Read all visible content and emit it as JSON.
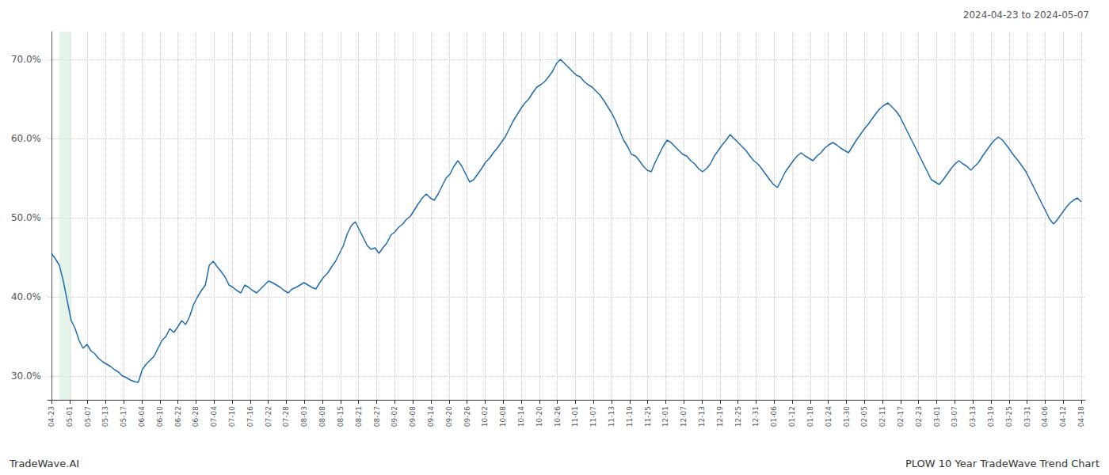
{
  "chart_data": {
    "type": "line",
    "title": "2024-04-23 to 2024-05-07",
    "annotations": [
      "TradeWave.AI",
      "PLOW 10 Year TradeWave Trend Chart"
    ],
    "color": "#1f6cb0",
    "grid": true,
    "line_style": "solid",
    "highlight": {
      "x": [
        2,
        5
      ],
      "color": "#d4edda"
    },
    "xlim": [
      -1,
      262
    ],
    "xticks": [
      {
        "value": 0,
        "label": "04-23"
      },
      {
        "value": 4.5789473684,
        "label": "05-01"
      },
      {
        "value": 9.1578947368,
        "label": "05-07"
      },
      {
        "value": 13.7368421053,
        "label": "05-13"
      },
      {
        "value": 18.3157894737,
        "label": "05-17"
      },
      {
        "value": 22.8947368421,
        "label": "06-04"
      },
      {
        "value": 27.4736842105,
        "label": "06-10"
      },
      {
        "value": 32.0526315789,
        "label": "06-22"
      },
      {
        "value": 36.6315789474,
        "label": "06-28"
      },
      {
        "value": 41.2105263158,
        "label": "07-04"
      },
      {
        "value": 45.7894736842,
        "label": "07-10"
      },
      {
        "value": 50.3684210526,
        "label": "07-16"
      },
      {
        "value": 54.9473684211,
        "label": "07-22"
      },
      {
        "value": 59.5263157895,
        "label": "07-28"
      },
      {
        "value": 64.1052631579,
        "label": "08-03"
      },
      {
        "value": 68.6842105263,
        "label": "08-08"
      },
      {
        "value": 73.2631578947,
        "label": "08-15"
      },
      {
        "value": 77.8421052632,
        "label": "08-21"
      },
      {
        "value": 82.4210526316,
        "label": "08-27"
      },
      {
        "value": 87,
        "label": "09-02"
      },
      {
        "value": 91.5789473684,
        "label": "09-08"
      },
      {
        "value": 96.1578947368,
        "label": "09-14"
      },
      {
        "value": 100.7368421053,
        "label": "09-20"
      },
      {
        "value": 105.3157894737,
        "label": "09-26"
      },
      {
        "value": 109.8947368421,
        "label": "10-02"
      },
      {
        "value": 114.4736842105,
        "label": "10-08"
      },
      {
        "value": 119.0526315789,
        "label": "10-14"
      },
      {
        "value": 123.6315789474,
        "label": "10-20"
      },
      {
        "value": 128.2105263158,
        "label": "10-26"
      },
      {
        "value": 132.7894736842,
        "label": "11-01"
      },
      {
        "value": 137.3684210526,
        "label": "11-07"
      },
      {
        "value": 141.9473684211,
        "label": "11-13"
      },
      {
        "value": 146.5263157895,
        "label": "11-19"
      },
      {
        "value": 151.1052631579,
        "label": "11-25"
      },
      {
        "value": 155.6842105263,
        "label": "12-01"
      },
      {
        "value": 160.2631578947,
        "label": "12-07"
      },
      {
        "value": 164.8421052632,
        "label": "12-13"
      },
      {
        "value": 169.4210526316,
        "label": "12-19"
      },
      {
        "value": 174,
        "label": "12-25"
      },
      {
        "value": 178.5789473684,
        "label": "12-31"
      },
      {
        "value": 183.1578947368,
        "label": "01-06"
      },
      {
        "value": 187.7368421053,
        "label": "01-12"
      },
      {
        "value": 192.3157894737,
        "label": "01-18"
      },
      {
        "value": 196.8947368421,
        "label": "01-24"
      },
      {
        "value": 201.4736842105,
        "label": "01-30"
      },
      {
        "value": 206.0526315789,
        "label": "02-05"
      },
      {
        "value": 210.6315789474,
        "label": "02-11"
      },
      {
        "value": 215.2105263158,
        "label": "02-17"
      },
      {
        "value": 219.7894736842,
        "label": "02-23"
      },
      {
        "value": 224.3684210526,
        "label": "03-01"
      },
      {
        "value": 228.9473684211,
        "label": "03-07"
      },
      {
        "value": 233.5263157895,
        "label": "03-13"
      },
      {
        "value": 238.1052631579,
        "label": "03-19"
      },
      {
        "value": 242.6842105263,
        "label": "03-25"
      },
      {
        "value": 247.2631578947,
        "label": "03-31"
      },
      {
        "value": 251.8421052632,
        "label": "04-06"
      },
      {
        "value": 256.4210526316,
        "label": "04-12"
      },
      {
        "value": 261,
        "label": "04-18"
      }
    ],
    "ylim": [
      0.27,
      0.735
    ],
    "yticks": [
      {
        "value": 0.3,
        "label": "30.0%"
      },
      {
        "value": 0.4,
        "label": "40.0%"
      },
      {
        "value": 0.5,
        "label": "50.0%"
      },
      {
        "value": 0.6,
        "label": "60.0%"
      },
      {
        "value": 0.7,
        "label": "70.0%"
      }
    ],
    "values": [
      0.455,
      0.448,
      0.44,
      0.42,
      0.395,
      0.37,
      0.36,
      0.345,
      0.335,
      0.34,
      0.332,
      0.328,
      0.322,
      0.318,
      0.315,
      0.312,
      0.308,
      0.305,
      0.3,
      0.298,
      0.295,
      0.293,
      0.292,
      0.308,
      0.315,
      0.32,
      0.325,
      0.335,
      0.345,
      0.35,
      0.36,
      0.355,
      0.362,
      0.37,
      0.365,
      0.375,
      0.39,
      0.4,
      0.408,
      0.415,
      0.44,
      0.445,
      0.438,
      0.432,
      0.425,
      0.415,
      0.412,
      0.408,
      0.405,
      0.415,
      0.412,
      0.408,
      0.405,
      0.41,
      0.415,
      0.42,
      0.418,
      0.415,
      0.412,
      0.408,
      0.405,
      0.41,
      0.412,
      0.415,
      0.418,
      0.415,
      0.412,
      0.41,
      0.418,
      0.425,
      0.43,
      0.438,
      0.445,
      0.455,
      0.465,
      0.48,
      0.49,
      0.495,
      0.485,
      0.475,
      0.465,
      0.46,
      0.462,
      0.455,
      0.462,
      0.468,
      0.478,
      0.482,
      0.488,
      0.492,
      0.498,
      0.502,
      0.51,
      0.518,
      0.525,
      0.53,
      0.525,
      0.522,
      0.53,
      0.54,
      0.55,
      0.555,
      0.565,
      0.572,
      0.565,
      0.555,
      0.545,
      0.548,
      0.555,
      0.562,
      0.57,
      0.575,
      0.582,
      0.588,
      0.595,
      0.602,
      0.612,
      0.622,
      0.63,
      0.638,
      0.645,
      0.65,
      0.658,
      0.665,
      0.668,
      0.672,
      0.678,
      0.685,
      0.695,
      0.7,
      0.695,
      0.69,
      0.685,
      0.68,
      0.678,
      0.672,
      0.668,
      0.665,
      0.66,
      0.655,
      0.648,
      0.64,
      0.632,
      0.622,
      0.61,
      0.598,
      0.59,
      0.58,
      0.578,
      0.572,
      0.565,
      0.56,
      0.558,
      0.57,
      0.58,
      0.59,
      0.598,
      0.595,
      0.59,
      0.585,
      0.58,
      0.578,
      0.572,
      0.568,
      0.562,
      0.558,
      0.562,
      0.568,
      0.578,
      0.585,
      0.592,
      0.598,
      0.605,
      0.6,
      0.595,
      0.59,
      0.585,
      0.578,
      0.572,
      0.568,
      0.562,
      0.555,
      0.548,
      0.542,
      0.538,
      0.548,
      0.558,
      0.565,
      0.572,
      0.578,
      0.582,
      0.578,
      0.575,
      0.572,
      0.578,
      0.582,
      0.588,
      0.592,
      0.595,
      0.592,
      0.588,
      0.585,
      0.582,
      0.59,
      0.598,
      0.605,
      0.612,
      0.618,
      0.625,
      0.632,
      0.638,
      0.642,
      0.645,
      0.64,
      0.635,
      0.628,
      0.618,
      0.608,
      0.598,
      0.588,
      0.578,
      0.568,
      0.558,
      0.548,
      0.545,
      0.542,
      0.548,
      0.555,
      0.562,
      0.568,
      0.572,
      0.568,
      0.565,
      0.56,
      0.565,
      0.57,
      0.578,
      0.585,
      0.592,
      0.598,
      0.602,
      0.598,
      0.592,
      0.585,
      0.578,
      0.572,
      0.565,
      0.558,
      0.548,
      0.538,
      0.528,
      0.518,
      0.508,
      0.498,
      0.492,
      0.498,
      0.505,
      0.512,
      0.518,
      0.522,
      0.525,
      0.52
    ]
  }
}
